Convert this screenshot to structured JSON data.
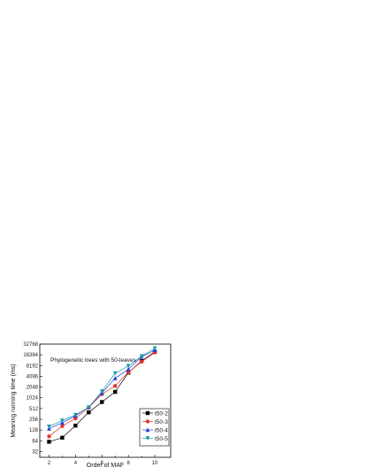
{
  "chart_data": {
    "type": "line",
    "title": "Phylogenetic trees with 50-leaves",
    "xlabel": "Order of MAF",
    "ylabel": "Meaning running time (ms)",
    "xlim": [
      1.3,
      11.2
    ],
    "xticks": [
      2,
      4,
      6,
      8,
      10
    ],
    "yscale": "log2",
    "ylim": [
      22,
      32768
    ],
    "yticks": [
      32,
      64,
      128,
      256,
      512,
      1024,
      2048,
      4096,
      8192,
      16384,
      32768
    ],
    "ytick_labels": [
      "32",
      "64",
      "128",
      "256",
      "512",
      "1024",
      "2048",
      "4096",
      "8192",
      "16384",
      "32768"
    ],
    "grid": false,
    "legend_position": "bottom-right",
    "series": [
      {
        "name": "t50-2",
        "color": "#000000",
        "marker": "square",
        "x": [
          2,
          3,
          4,
          5,
          6,
          7,
          8,
          9,
          10
        ],
        "y": [
          60,
          78,
          170,
          400,
          780,
          1500,
          5200,
          11000,
          20000
        ]
      },
      {
        "name": "t50-3",
        "color": "#e8332c",
        "marker": "circle",
        "x": [
          2,
          3,
          4,
          5,
          6,
          7,
          8,
          9,
          10
        ],
        "y": [
          85,
          165,
          270,
          540,
          1300,
          2200,
          5300,
          10500,
          19000
        ]
      },
      {
        "name": "t50-4",
        "color": "#2640d9",
        "marker": "triangle-up",
        "x": [
          2,
          3,
          4,
          5,
          6,
          7,
          8,
          9,
          10
        ],
        "y": [
          140,
          205,
          320,
          560,
          1400,
          3600,
          6500,
          14500,
          22000
        ]
      },
      {
        "name": "t50-5",
        "color": "#1a9aa6",
        "marker": "triangle-down",
        "x": [
          2,
          3,
          4,
          5,
          6,
          7,
          8,
          9,
          10
        ],
        "y": [
          160,
          235,
          340,
          550,
          1550,
          5000,
          8000,
          15000,
          25000
        ]
      }
    ]
  }
}
